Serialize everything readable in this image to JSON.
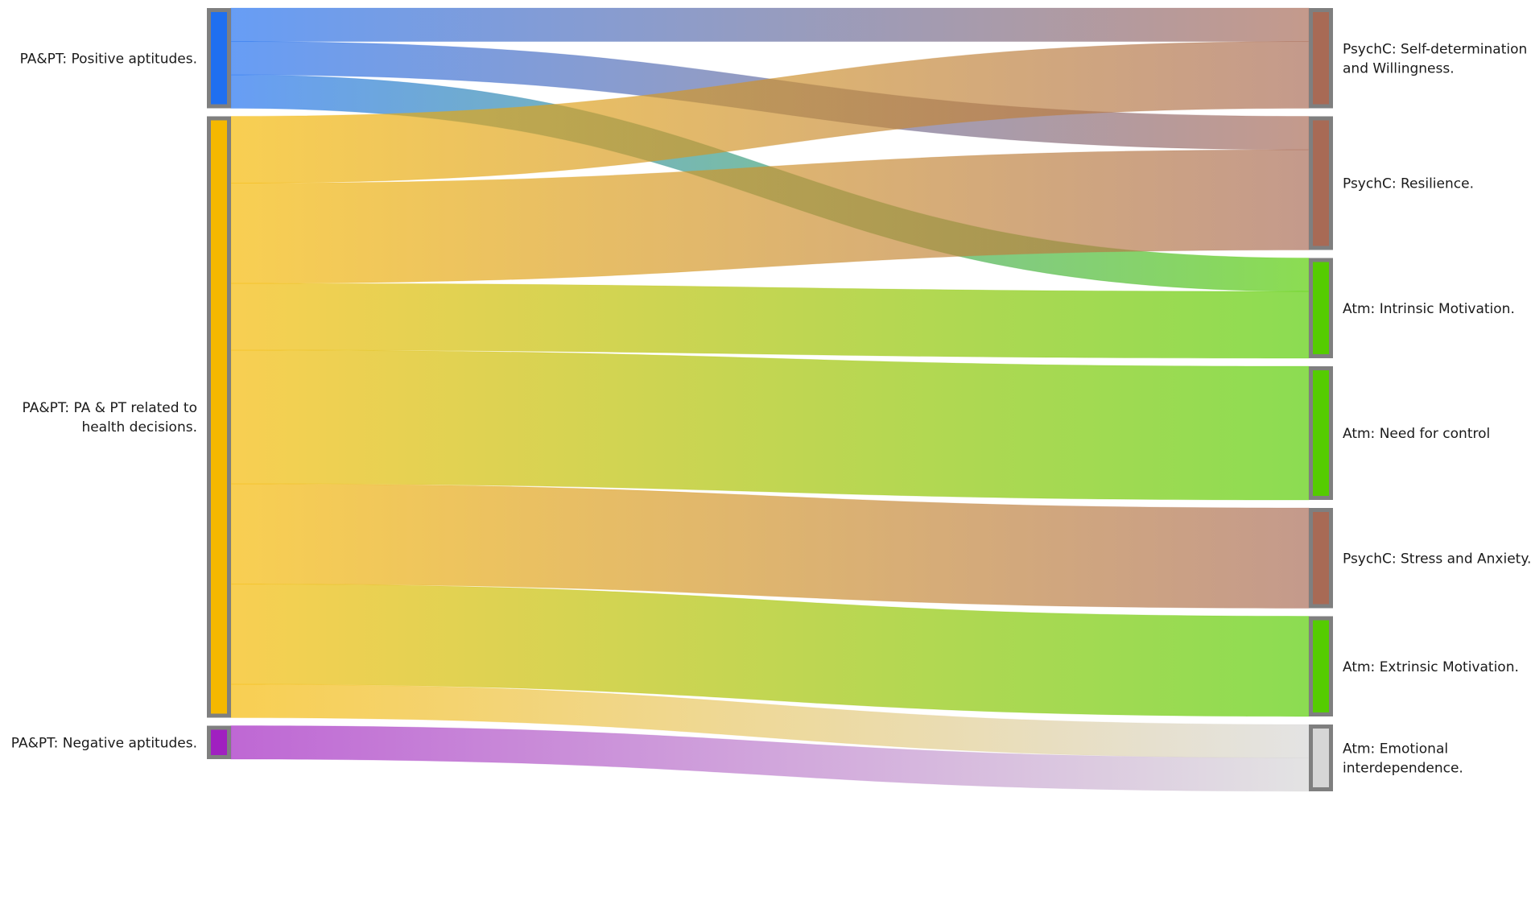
{
  "sankey": {
    "sources": [
      {
        "id": "pos",
        "label_lines": [
          "PA&PT: Positive aptitudes."
        ],
        "color": "#1f6ff0"
      },
      {
        "id": "health",
        "label_lines": [
          "PA&PT: PA & PT related to",
          "health decisions."
        ],
        "color": "#f5b800"
      },
      {
        "id": "neg",
        "label_lines": [
          "PA&PT: Negative aptitudes."
        ],
        "color": "#a020c0"
      }
    ],
    "targets": [
      {
        "id": "selfdet",
        "label_lines": [
          "PsychC: Self-determination",
          "and Willingness."
        ],
        "color": "#a86a55"
      },
      {
        "id": "resil",
        "label_lines": [
          "PsychC: Resilience."
        ],
        "color": "#a86a55"
      },
      {
        "id": "intr",
        "label_lines": [
          "Atm: Intrinsic Motivation."
        ],
        "color": "#55cc00"
      },
      {
        "id": "need",
        "label_lines": [
          "Atm: Need for control"
        ],
        "color": "#55cc00"
      },
      {
        "id": "stress",
        "label_lines": [
          "PsychC: Stress and Anxiety."
        ],
        "color": "#a86a55"
      },
      {
        "id": "extr",
        "label_lines": [
          "Atm: Extrinsic Motivation."
        ],
        "color": "#55cc00"
      },
      {
        "id": "emo",
        "label_lines": [
          "Atm: Emotional",
          "interdependence."
        ],
        "color": "#d6d6d6"
      }
    ],
    "flows": [
      {
        "source": "pos",
        "target": "selfdet",
        "value": 1
      },
      {
        "source": "pos",
        "target": "resil",
        "value": 1
      },
      {
        "source": "pos",
        "target": "intr",
        "value": 1
      },
      {
        "source": "health",
        "target": "selfdet",
        "value": 2
      },
      {
        "source": "health",
        "target": "resil",
        "value": 3
      },
      {
        "source": "health",
        "target": "intr",
        "value": 2
      },
      {
        "source": "health",
        "target": "need",
        "value": 4
      },
      {
        "source": "health",
        "target": "stress",
        "value": 3
      },
      {
        "source": "health",
        "target": "extr",
        "value": 3
      },
      {
        "source": "health",
        "target": "emo",
        "value": 1
      },
      {
        "source": "neg",
        "target": "emo",
        "value": 1
      }
    ]
  }
}
